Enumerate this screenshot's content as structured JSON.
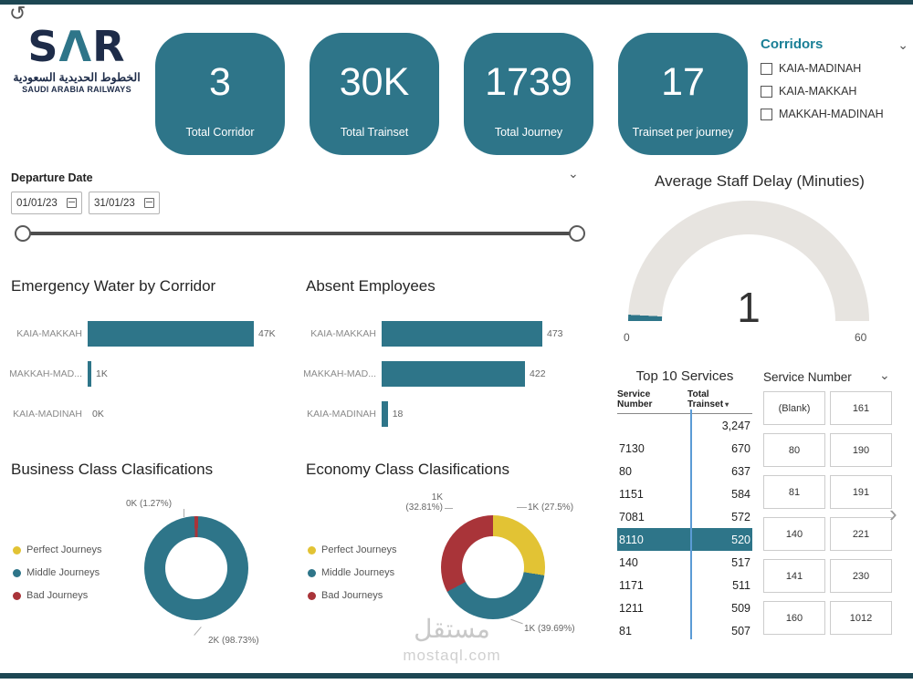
{
  "page": {
    "watermark_main": "مستقل",
    "watermark_sub": "mostaql.com"
  },
  "icons": {
    "back_arrow": "↺",
    "chevron_down": "⌄",
    "chevron_right": "›",
    "sort_desc": "▾"
  },
  "colors": {
    "teal": "#2e7589",
    "yellow": "#e2c334",
    "red": "#a93439",
    "gauge_track": "#e7e4e0"
  },
  "logo": {
    "s": "S",
    "a": "Λ",
    "r": "R",
    "arabic": "الخطوط الحديدية السعودية",
    "english": "SAUDI ARABIA RAILWAYS"
  },
  "kpi_cards": [
    {
      "value": "3",
      "label": "Total Corridor"
    },
    {
      "value": "30K",
      "label": "Total Trainset"
    },
    {
      "value": "1739",
      "label": "Total Journey"
    },
    {
      "value": "17",
      "label": "Trainset per journey"
    }
  ],
  "corridors": {
    "title": "Corridors",
    "options": [
      {
        "label": "KAIA-MADINAH",
        "checked": false
      },
      {
        "label": "KAIA-MAKKAH",
        "checked": false
      },
      {
        "label": "MAKKAH-MADINAH",
        "checked": false
      }
    ]
  },
  "departure": {
    "label": "Departure Date",
    "start": "01/01/23",
    "end": "31/01/23"
  },
  "service_slicer": {
    "title": "Service Number",
    "buttons": [
      "(Blank)",
      "161",
      "80",
      "190",
      "81",
      "191",
      "140",
      "221",
      "141",
      "230",
      "160",
      "1012"
    ]
  },
  "chart_data": [
    {
      "name": "gauge",
      "type": "gauge",
      "title": "Average Staff Delay (Minuties)",
      "value": 1,
      "min": 0,
      "max": 60,
      "value_label": "1",
      "min_label": "0",
      "max_label": "60"
    },
    {
      "name": "emergency_water",
      "type": "bar",
      "title": "Emergency Water by Corridor",
      "orientation": "horizontal",
      "categories": [
        "KAIA-MAKKAH",
        "MAKKAH-MAD...",
        "KAIA-MADINAH"
      ],
      "values": [
        47,
        1,
        0
      ],
      "value_labels": [
        "47K",
        "1K",
        "0K"
      ]
    },
    {
      "name": "absent_employees",
      "type": "bar",
      "title": "Absent Employees",
      "orientation": "horizontal",
      "categories": [
        "KAIA-MAKKAH",
        "MAKKAH-MAD...",
        "KAIA-MADINAH"
      ],
      "values": [
        473,
        422,
        18
      ],
      "value_labels": [
        "473",
        "422",
        "18"
      ]
    },
    {
      "name": "business_class",
      "type": "pie",
      "title": "Business Class Clasifications",
      "start_deg": -2.3,
      "legend": [
        {
          "label": "Perfect Journeys",
          "color": "#e2c334"
        },
        {
          "label": "Middle Journeys",
          "color": "#2e7589"
        },
        {
          "label": "Bad Journeys",
          "color": "#a93439"
        }
      ],
      "segments": [
        {
          "label": "Bad Journeys",
          "pct": 1.27,
          "color": "#a93439",
          "callout": "0K (1.27%)"
        },
        {
          "label": "Middle Journeys",
          "pct": 98.73,
          "color": "#2e7589",
          "callout": "2K (98.73%)"
        }
      ]
    },
    {
      "name": "economy_class",
      "type": "pie",
      "title": "Economy Class Clasifications",
      "start_deg": 0,
      "legend": [
        {
          "label": "Perfect Journeys",
          "color": "#e2c334"
        },
        {
          "label": "Middle Journeys",
          "color": "#2e7589"
        },
        {
          "label": "Bad Journeys",
          "color": "#a93439"
        }
      ],
      "segments": [
        {
          "label": "Perfect Journeys",
          "pct": 27.5,
          "color": "#e2c334",
          "callout": "1K (27.5%)"
        },
        {
          "label": "Middle Journeys",
          "pct": 39.69,
          "color": "#2e7589",
          "callout": "1K (39.69%)"
        },
        {
          "label": "Bad Journeys",
          "pct": 32.81,
          "color": "#a93439",
          "callout": "1K (32.81%)"
        }
      ]
    },
    {
      "name": "top10_services",
      "type": "table",
      "title": "Top 10 Services",
      "columns": [
        "Service Number",
        "Total Trainset"
      ],
      "rows": [
        [
          "",
          "3,247"
        ],
        [
          "7130",
          "670"
        ],
        [
          "80",
          "637"
        ],
        [
          "1151",
          "584"
        ],
        [
          "7081",
          "572"
        ],
        [
          "8110",
          "520"
        ],
        [
          "140",
          "517"
        ],
        [
          "1171",
          "511"
        ],
        [
          "1211",
          "509"
        ],
        [
          "81",
          "507"
        ]
      ],
      "highlighted_row": "8110"
    }
  ]
}
